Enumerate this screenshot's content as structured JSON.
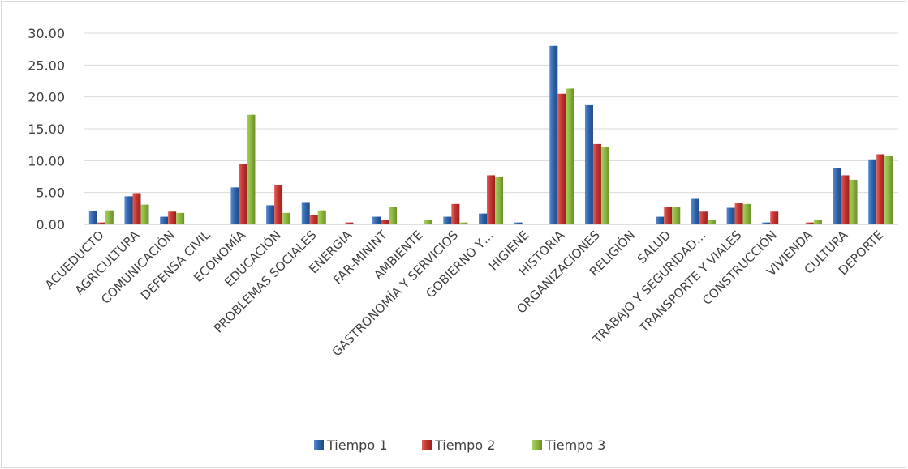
{
  "chart_data": {
    "type": "bar",
    "title": "",
    "xlabel": "",
    "ylabel": "",
    "ylim": [
      0,
      30
    ],
    "yticks": [
      "0.00",
      "5.00",
      "10.00",
      "15.00",
      "20.00",
      "25.00",
      "30.00"
    ],
    "grid": true,
    "legend_position": "bottom",
    "categories": [
      "ACUEDUCTO",
      "AGRICULTURA",
      "COMUNICACIÓN",
      "DEFENSA CIVIL",
      "ECONOMÍA",
      "EDUCACIÓN",
      "PROBLEMAS SOCIALES",
      "ENERGÍA",
      "FAR-MININT",
      "AMBIENTE",
      "GASTRONOMÍA Y SERVICIOS",
      "GOBIERNO Y…",
      "HIGIENE",
      "HISTORIA",
      "ORGANIZACIONES",
      "RELIGIÓN",
      "SALUD",
      "TRABAJO Y SEGURIDAD…",
      "TRANSPORTE Y VIALES",
      "CONSTRUCCIÓN",
      "VIVIENDA",
      "CULTURA",
      "DEPORTE"
    ],
    "series": [
      {
        "name": "Tiempo 1",
        "color": "#2e62a8",
        "values": [
          2.1,
          4.4,
          1.2,
          0,
          5.8,
          3.0,
          3.5,
          0,
          1.2,
          0,
          1.2,
          1.7,
          0.3,
          28.0,
          18.7,
          0,
          1.2,
          4.0,
          2.6,
          0.3,
          0,
          8.8,
          10.2
        ]
      },
      {
        "name": "Tiempo 2",
        "color": "#c2312e",
        "values": [
          0.3,
          4.9,
          2.0,
          0,
          9.5,
          6.1,
          1.5,
          0.3,
          0.7,
          0,
          3.2,
          7.7,
          0,
          20.5,
          12.6,
          0,
          2.7,
          2.0,
          3.3,
          2.0,
          0.3,
          7.7,
          11.0
        ]
      },
      {
        "name": "Tiempo 3",
        "color": "#8ab53d",
        "values": [
          2.2,
          3.1,
          1.8,
          0,
          17.2,
          1.8,
          2.2,
          0,
          2.7,
          0.7,
          0.3,
          7.4,
          0,
          21.3,
          12.1,
          0,
          2.7,
          0.7,
          3.2,
          0,
          0.7,
          7.0,
          10.8
        ]
      }
    ]
  }
}
